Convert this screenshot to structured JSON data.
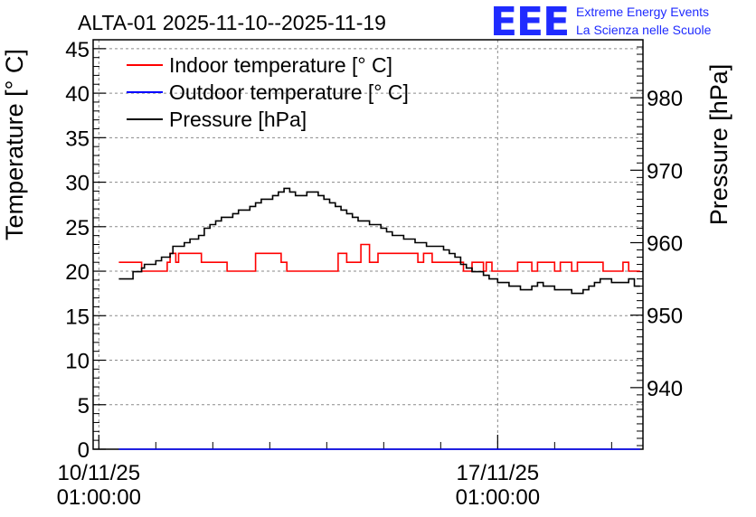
{
  "chart_data": {
    "type": "line",
    "title": "ALTA-01 2025-11-10--2025-11-19",
    "ylabel": "Temperature [° C]",
    "y2label": "Pressure [hPa]",
    "ylim": [
      0,
      46
    ],
    "y2lim": [
      931.5,
      988
    ],
    "xlim": [
      -0.1,
      9.55
    ],
    "yticks": [
      0,
      5,
      10,
      15,
      20,
      25,
      30,
      35,
      40,
      45
    ],
    "y2ticks": [
      940,
      950,
      960,
      970,
      980
    ],
    "xticks": [
      {
        "x": 0,
        "line1": "10/11/25",
        "line2": "01:00:00"
      },
      {
        "x": 7,
        "line1": "17/11/25",
        "line2": "01:00:00"
      }
    ],
    "grid": true,
    "legend_position": "top-left",
    "series": [
      {
        "name": "Indoor temperature [° C]",
        "color": "#ff0000",
        "axis": "left",
        "x": [
          0.35,
          0.65,
          0.75,
          1.2,
          1.25,
          1.35,
          1.4,
          1.8,
          2.1,
          2.25,
          2.35,
          2.75,
          3.2,
          3.3,
          3.5,
          4.2,
          4.35,
          4.45,
          4.6,
          4.75,
          4.9,
          5.6,
          5.7,
          5.85,
          6.0,
          6.4,
          6.55,
          6.75,
          6.8,
          6.9,
          7.0,
          7.2,
          7.35,
          7.5,
          7.6,
          7.7,
          7.9,
          8.0,
          8.1,
          8.3,
          8.4,
          8.6,
          8.85,
          9.2,
          9.3,
          9.5
        ],
        "values": [
          21,
          21,
          20,
          21,
          22,
          21,
          22,
          21,
          21,
          20,
          20,
          22,
          21,
          20,
          20,
          22,
          21,
          21,
          23,
          21,
          22,
          21,
          22,
          21,
          21,
          20,
          21,
          20,
          21,
          20,
          20,
          20,
          21,
          21,
          20,
          21,
          21,
          20,
          21,
          20,
          21,
          21,
          20,
          21,
          20,
          20
        ],
        "line_style": "step"
      },
      {
        "name": "Outdoor temperature [° C]",
        "color": "#0000ff",
        "axis": "left",
        "x": [
          0.35,
          9.5
        ],
        "values": [
          0,
          0
        ],
        "line_style": "step"
      },
      {
        "name": "Pressure [hPa]",
        "color": "#000000",
        "axis": "right",
        "x": [
          0.35,
          0.5,
          0.6,
          0.75,
          0.8,
          0.9,
          1.0,
          1.1,
          1.25,
          1.3,
          1.4,
          1.5,
          1.6,
          1.75,
          1.85,
          1.95,
          2.05,
          2.15,
          2.25,
          2.35,
          2.45,
          2.55,
          2.65,
          2.75,
          2.85,
          2.95,
          3.05,
          3.15,
          3.25,
          3.35,
          3.45,
          3.55,
          3.65,
          3.75,
          3.85,
          3.95,
          4.05,
          4.15,
          4.25,
          4.35,
          4.45,
          4.55,
          4.65,
          4.75,
          4.85,
          4.95,
          5.05,
          5.15,
          5.25,
          5.35,
          5.45,
          5.55,
          5.65,
          5.75,
          5.85,
          5.95,
          6.05,
          6.15,
          6.25,
          6.35,
          6.45,
          6.55,
          6.65,
          6.75,
          6.85,
          6.95,
          7.0,
          7.1,
          7.2,
          7.3,
          7.4,
          7.5,
          7.6,
          7.7,
          7.8,
          7.9,
          8.0,
          8.1,
          8.2,
          8.3,
          8.4,
          8.5,
          8.6,
          8.7,
          8.8,
          8.9,
          9.0,
          9.1,
          9.2,
          9.3,
          9.4,
          9.5
        ],
        "values": [
          955,
          955,
          956,
          956.5,
          957,
          957,
          957.5,
          958,
          958.5,
          959.5,
          959.5,
          960,
          960.5,
          961,
          962,
          962.5,
          963,
          963.5,
          963.5,
          964,
          964.5,
          964.5,
          965,
          965.5,
          966,
          966,
          966.5,
          967,
          967.5,
          967,
          966.5,
          966.5,
          967,
          967,
          966.5,
          966,
          965.5,
          965,
          964.5,
          964,
          963.5,
          963,
          963,
          962.5,
          962.5,
          962,
          961.5,
          961,
          961,
          960.5,
          960.5,
          960,
          960,
          959.5,
          959.5,
          959.5,
          959,
          958.5,
          958,
          957,
          956.5,
          956,
          956,
          955.5,
          955,
          955,
          954.5,
          954.5,
          954,
          954,
          953.5,
          953.5,
          954,
          954.5,
          954,
          954,
          953.5,
          953.5,
          953.5,
          953,
          953,
          953.5,
          954,
          954.5,
          955,
          955,
          954.5,
          954.5,
          954.5,
          955,
          954,
          954
        ],
        "line_style": "step"
      }
    ]
  },
  "logo": {
    "mark": "EEE",
    "line1": "Extreme Energy Events",
    "line2": "La Scienza nelle Scuole"
  }
}
